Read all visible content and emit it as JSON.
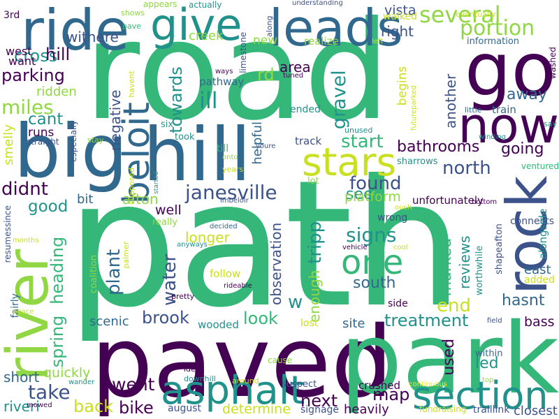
{
  "palette": {
    "purple": "#440154",
    "indigo": "#3b528b",
    "blue": "#31688e",
    "teal": "#21918c",
    "green": "#35b779",
    "lightgreen": "#5ec962",
    "lime": "#90d743",
    "yellow": "#c8e020",
    "brightyellow": "#fde725"
  },
  "words": [
    {
      "text": "road",
      "color": "green"
    },
    {
      "text": "path",
      "color": "green"
    },
    {
      "text": "paved",
      "color": "purple"
    },
    {
      "text": "park",
      "color": "green"
    },
    {
      "text": "big",
      "color": "blue"
    },
    {
      "text": "hill",
      "color": "blue"
    },
    {
      "text": "go",
      "color": "purple"
    },
    {
      "text": "ride",
      "color": "blue"
    },
    {
      "text": "leads",
      "color": "blue"
    },
    {
      "text": "river",
      "color": "lime"
    },
    {
      "text": "rock",
      "color": "indigo"
    },
    {
      "text": "now",
      "color": "purple"
    },
    {
      "text": "give",
      "color": "teal"
    },
    {
      "text": "stars",
      "color": "yellow"
    },
    {
      "text": "beloit",
      "color": "blue"
    },
    {
      "text": "asphalt",
      "color": "teal"
    },
    {
      "text": "section",
      "color": "teal"
    },
    {
      "text": "one",
      "color": "green"
    },
    {
      "text": "several",
      "color": "lime"
    },
    {
      "text": "portion",
      "color": "lime"
    },
    {
      "text": "janesville",
      "color": "indigo"
    },
    {
      "text": "miles",
      "color": "lime"
    },
    {
      "text": "cross",
      "color": "teal"
    },
    {
      "text": "parking",
      "color": "purple"
    },
    {
      "text": "bathrooms",
      "color": "purple"
    },
    {
      "text": "found",
      "color": "indigo"
    },
    {
      "text": "north",
      "color": "indigo"
    },
    {
      "text": "signs",
      "color": "teal"
    },
    {
      "text": "south",
      "color": "blue"
    },
    {
      "text": "treatment",
      "color": "teal"
    },
    {
      "text": "went",
      "color": "purple"
    },
    {
      "text": "take",
      "color": "indigo"
    },
    {
      "text": "back",
      "color": "yellow"
    },
    {
      "text": "bike",
      "color": "purple"
    },
    {
      "text": "next",
      "color": "purple"
    },
    {
      "text": "map",
      "color": "purple"
    },
    {
      "text": "brook",
      "color": "indigo"
    },
    {
      "text": "look",
      "color": "green"
    },
    {
      "text": "end",
      "color": "yellow"
    },
    {
      "text": "didnt",
      "color": "purple"
    },
    {
      "text": "good",
      "color": "teal"
    },
    {
      "text": "cant",
      "color": "teal"
    },
    {
      "text": "gravel",
      "color": "teal"
    },
    {
      "text": "start",
      "color": "green"
    },
    {
      "text": "ill",
      "color": "teal"
    },
    {
      "text": "area",
      "color": "purple"
    },
    {
      "text": "rd",
      "color": "lime"
    },
    {
      "text": "withere",
      "color": "indigo"
    },
    {
      "text": "right",
      "color": "indigo"
    },
    {
      "text": "vista",
      "color": "indigo"
    },
    {
      "text": "hill",
      "color": "purple"
    },
    {
      "text": "away",
      "color": "blue"
    },
    {
      "text": "going",
      "color": "purple"
    },
    {
      "text": "marked",
      "color": "green"
    },
    {
      "text": "reviews",
      "color": "teal"
    },
    {
      "text": "hasnt",
      "color": "blue"
    },
    {
      "text": "used",
      "color": "purple"
    },
    {
      "text": "led",
      "color": "teal"
    },
    {
      "text": "east",
      "color": "blue"
    },
    {
      "text": "bass",
      "color": "purple"
    },
    {
      "text": "plant",
      "color": "blue"
    },
    {
      "text": "water",
      "color": "indigo"
    },
    {
      "text": "heading",
      "color": "green"
    },
    {
      "text": "spring",
      "color": "green"
    },
    {
      "text": "tripp",
      "color": "teal"
    },
    {
      "text": "w",
      "color": "teal"
    },
    {
      "text": "observation",
      "color": "indigo"
    },
    {
      "text": "enough",
      "color": "lime"
    },
    {
      "text": "site",
      "color": "blue"
    },
    {
      "text": "scenic",
      "color": "blue"
    },
    {
      "text": "wooded",
      "color": "teal"
    },
    {
      "text": "quickly",
      "color": "lime"
    },
    {
      "text": "short",
      "color": "blue"
    },
    {
      "text": "riveri",
      "color": "teal"
    },
    {
      "text": "crushed",
      "color": "purple"
    },
    {
      "text": "heavily",
      "color": "purple"
    },
    {
      "text": "determine",
      "color": "yellow"
    },
    {
      "text": "closest",
      "color": "indigo"
    },
    {
      "text": "see",
      "color": "teal"
    },
    {
      "text": "platform",
      "color": "lime"
    },
    {
      "text": "longer",
      "color": "yellow"
    },
    {
      "text": "follow",
      "color": "yellow"
    },
    {
      "text": "afton",
      "color": "lime"
    },
    {
      "text": "well",
      "color": "purple"
    },
    {
      "text": "bit",
      "color": "blue"
    },
    {
      "text": "towards",
      "color": "teal"
    },
    {
      "text": "negative",
      "color": "indigo"
    },
    {
      "text": "ridden",
      "color": "lime"
    },
    {
      "text": "runs",
      "color": "purple"
    },
    {
      "text": "smelly",
      "color": "yellow"
    },
    {
      "text": "west",
      "color": "purple"
    },
    {
      "text": "want",
      "color": "purple"
    },
    {
      "text": "3rd",
      "color": "purple"
    },
    {
      "text": "creek",
      "color": "lime"
    },
    {
      "text": "new",
      "color": "lime"
    },
    {
      "text": "realize",
      "color": "lime"
    },
    {
      "text": "helpful",
      "color": "blue"
    },
    {
      "text": "track",
      "color": "indigo"
    },
    {
      "text": "pathway",
      "color": "blue"
    },
    {
      "text": "ended",
      "color": "teal"
    },
    {
      "text": "begins",
      "color": "yellow"
    },
    {
      "text": "another",
      "color": "indigo"
    },
    {
      "text": "train",
      "color": "blue"
    },
    {
      "text": "unfortunately",
      "color": "purple"
    },
    {
      "text": "connects",
      "color": "indigo"
    },
    {
      "text": "alongside",
      "color": "teal"
    },
    {
      "text": "shapeafton",
      "color": "indigo"
    },
    {
      "text": "worthwhile",
      "color": "teal"
    },
    {
      "text": "added",
      "color": "yellow"
    },
    {
      "text": "information",
      "color": "blue"
    },
    {
      "text": "washed",
      "color": "purple"
    },
    {
      "text": "eventually",
      "color": "yellow"
    },
    {
      "text": "fundraising",
      "color": "yellow"
    },
    {
      "text": "traillink",
      "color": "indigo"
    },
    {
      "text": "signage",
      "color": "indigo"
    },
    {
      "text": "august",
      "color": "indigo"
    },
    {
      "text": "suspect",
      "color": "indigo"
    },
    {
      "text": "lost",
      "color": "yellow"
    },
    {
      "text": "side",
      "color": "purple"
    },
    {
      "text": "wrong",
      "color": "indigo"
    },
    {
      "text": "really",
      "color": "lime"
    },
    {
      "text": "coalition",
      "color": "lime"
    },
    {
      "text": "palmer",
      "color": "yellow"
    },
    {
      "text": "resumessince",
      "color": "indigo"
    },
    {
      "text": "fairly",
      "color": "blue"
    },
    {
      "text": "especially",
      "color": "indigo"
    },
    {
      "text": "straight",
      "color": "indigo"
    },
    {
      "text": "six",
      "color": "teal"
    },
    {
      "text": "took",
      "color": "teal"
    },
    {
      "text": "till",
      "color": "green"
    },
    {
      "text": "years",
      "color": "yellow"
    },
    {
      "text": "lot",
      "color": "lime"
    },
    {
      "text": "sharrows",
      "color": "teal"
    },
    {
      "text": "unused",
      "color": "teal"
    },
    {
      "text": "little",
      "color": "blue"
    },
    {
      "text": "winding",
      "color": "teal"
    },
    {
      "text": "say",
      "color": "teal"
    },
    {
      "text": "ventured",
      "color": "green"
    },
    {
      "text": "bottom",
      "color": "purple"
    },
    {
      "text": "ouch",
      "color": "yellow"
    },
    {
      "text": "vehicle",
      "color": "purple"
    },
    {
      "text": "cool",
      "color": "yellow"
    },
    {
      "text": "field",
      "color": "indigo"
    },
    {
      "text": "top",
      "color": "lime"
    },
    {
      "text": "continuous",
      "color": "brightyellow"
    },
    {
      "text": "within",
      "color": "blue"
    },
    {
      "text": "cause",
      "color": "lime"
    },
    {
      "text": "idea",
      "color": "purple"
    },
    {
      "text": "downhill",
      "color": "teal"
    },
    {
      "text": "around",
      "color": "yellow"
    },
    {
      "text": "wander",
      "color": "teal"
    },
    {
      "text": "mowed",
      "color": "purple"
    },
    {
      "text": "peace",
      "color": "yellow"
    },
    {
      "text": "pretty",
      "color": "purple"
    },
    {
      "text": "rideable",
      "color": "purple"
    },
    {
      "text": "decided",
      "color": "blue"
    },
    {
      "text": "anyways",
      "color": "teal"
    },
    {
      "text": "months",
      "color": "yellow"
    },
    {
      "text": "imbeloir",
      "color": "indigo"
    },
    {
      "text": "onto",
      "color": "lime"
    },
    {
      "text": "youre",
      "color": "indigo"
    },
    {
      "text": "started",
      "color": "teal"
    },
    {
      "text": "supposed",
      "color": "yellow"
    },
    {
      "text": "stay",
      "color": "lime"
    },
    {
      "text": "ways",
      "color": "purple"
    },
    {
      "text": "tuned",
      "color": "purple"
    },
    {
      "text": "havent",
      "color": "yellow"
    },
    {
      "text": "shows",
      "color": "lime"
    },
    {
      "text": "pave",
      "color": "green"
    },
    {
      "text": "appears",
      "color": "lime"
    },
    {
      "text": "actually",
      "color": "teal"
    },
    {
      "text": "limestone",
      "color": "indigo"
    },
    {
      "text": "along",
      "color": "indigo"
    },
    {
      "text": "understanding",
      "color": "indigo"
    },
    {
      "text": "walked",
      "color": "yellow"
    },
    {
      "text": "futureparked",
      "color": "yellow"
    },
    {
      "text": "left",
      "color": "yellow"
    }
  ]
}
